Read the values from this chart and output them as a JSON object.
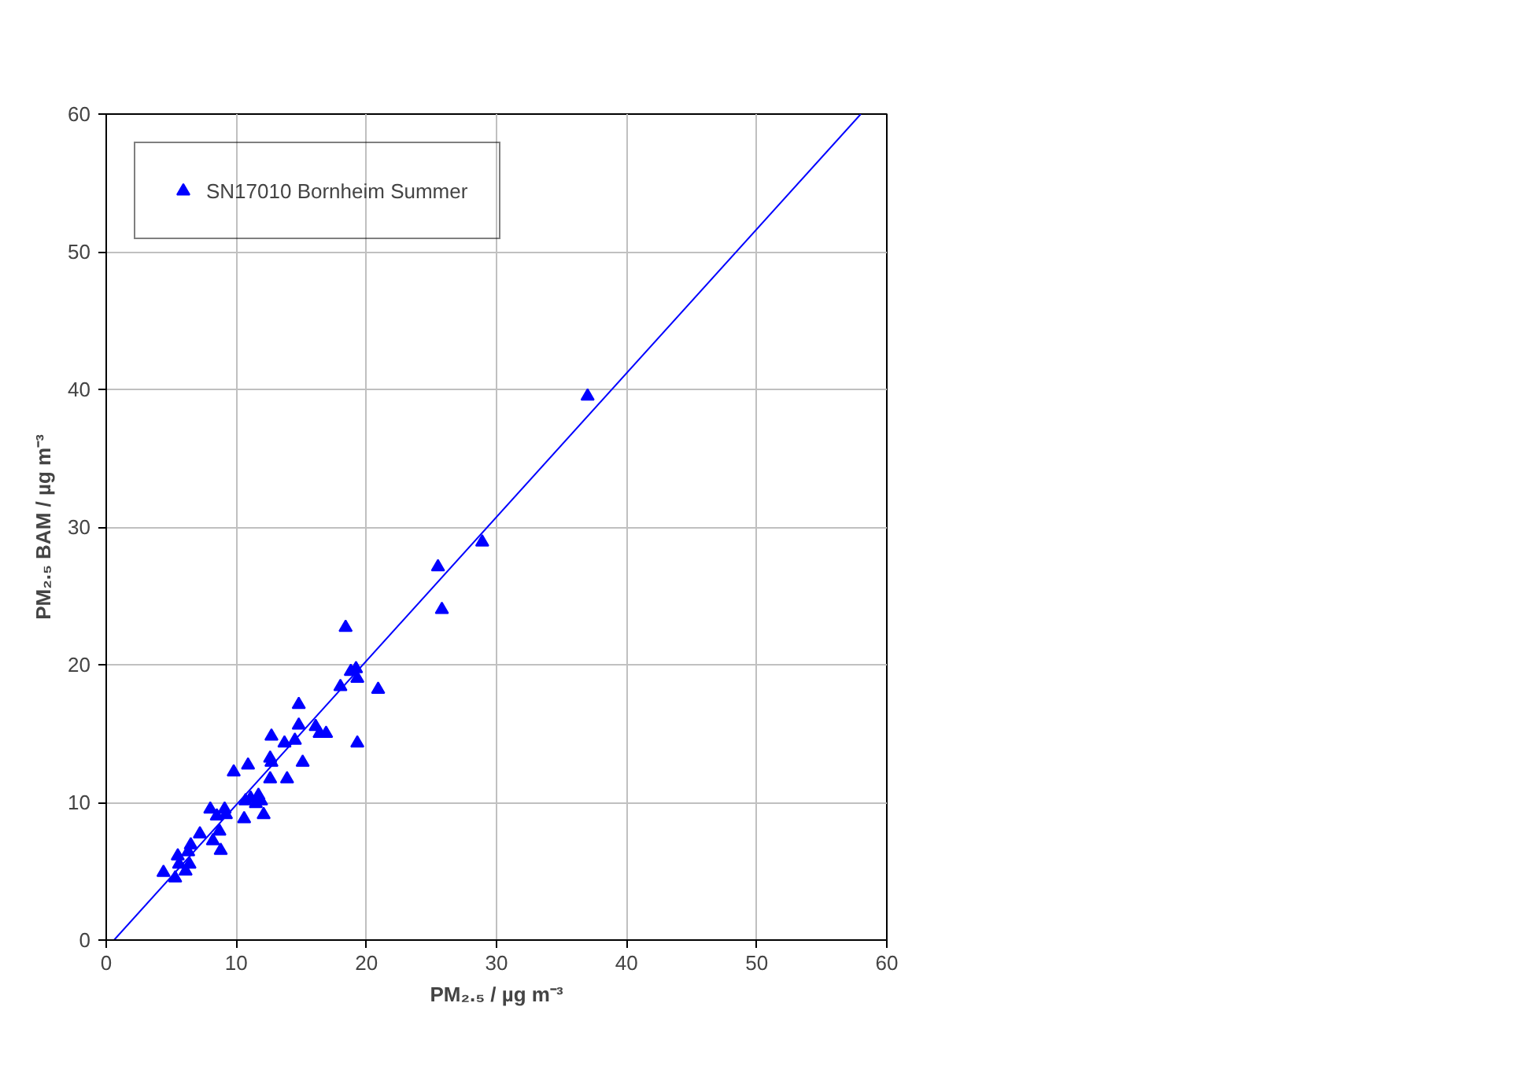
{
  "chart_data": {
    "type": "scatter",
    "xlabel": "PM₂.₅ / µg m⁻³",
    "ylabel": "PM₂.₅ BAM / µg m⁻³",
    "xlim": [
      0,
      60
    ],
    "ylim": [
      0,
      60
    ],
    "xticks": [
      0,
      10,
      20,
      30,
      40,
      50,
      60
    ],
    "yticks": [
      0,
      10,
      20,
      30,
      40,
      50,
      60
    ],
    "grid": true,
    "legend": "top left",
    "marker": "triangle",
    "series": [
      {
        "name": "SN17010 Bornheim Summer",
        "color": "#0000ff",
        "x": [
          37.0,
          28.9,
          25.5,
          25.8,
          18.4,
          19.2,
          18.8,
          19.3,
          18.0,
          20.9,
          14.8,
          14.8,
          16.1,
          16.4,
          16.9,
          12.7,
          13.7,
          14.5,
          19.3,
          12.6,
          12.7,
          15.1,
          9.8,
          10.9,
          12.6,
          13.9,
          10.7,
          11.1,
          11.5,
          11.7,
          11.9,
          10.6,
          12.1,
          8.0,
          8.5,
          9.1,
          9.2,
          8.7,
          7.2,
          8.2,
          8.8,
          6.5,
          6.3,
          5.5,
          5.6,
          6.4,
          6.1,
          4.4,
          5.3
        ],
        "values": [
          39.5,
          28.9,
          27.1,
          24.0,
          22.7,
          19.7,
          19.5,
          19.0,
          18.4,
          18.2,
          17.1,
          15.6,
          15.5,
          15.0,
          15.0,
          14.8,
          14.3,
          14.5,
          14.3,
          13.2,
          12.9,
          12.9,
          12.2,
          12.7,
          11.7,
          11.7,
          10.1,
          10.3,
          9.9,
          10.5,
          10.1,
          8.8,
          9.1,
          9.5,
          9.0,
          9.5,
          9.1,
          7.9,
          7.7,
          7.2,
          6.5,
          6.9,
          6.4,
          6.1,
          5.5,
          5.5,
          5.0,
          4.9,
          4.5
        ]
      },
      {
        "color": "#0000ff",
        "type": "line",
        "marker": "none",
        "x": [
          0.6,
          58.0
        ],
        "values": [
          0,
          60
        ]
      }
    ]
  }
}
